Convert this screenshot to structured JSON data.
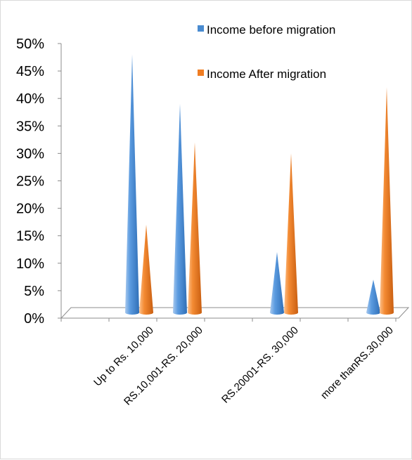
{
  "chart_data": {
    "type": "bar",
    "title": "",
    "xlabel": "",
    "ylabel": "",
    "ylim": [
      0,
      0.5
    ],
    "yticks": [
      "0%",
      "5%",
      "10%",
      "15%",
      "20%",
      "25%",
      "30%",
      "35%",
      "40%",
      "45%",
      "50%"
    ],
    "categories": [
      "Up to Rs. 10,000",
      "RS.10,001-RS. 20,000",
      "RS.20001-RS. 30,000",
      "more thanRS.30,000"
    ],
    "series": [
      {
        "name": "Income before migration",
        "values": [
          0.47,
          0.38,
          0.11,
          0.06
        ],
        "color": "#4a8bd0"
      },
      {
        "name": "Income After migration",
        "values": [
          0.16,
          0.31,
          0.29,
          0.41
        ],
        "color": "#f07d22"
      }
    ],
    "legend_position": "top-right",
    "grid": false,
    "bar_shape": "cone"
  }
}
